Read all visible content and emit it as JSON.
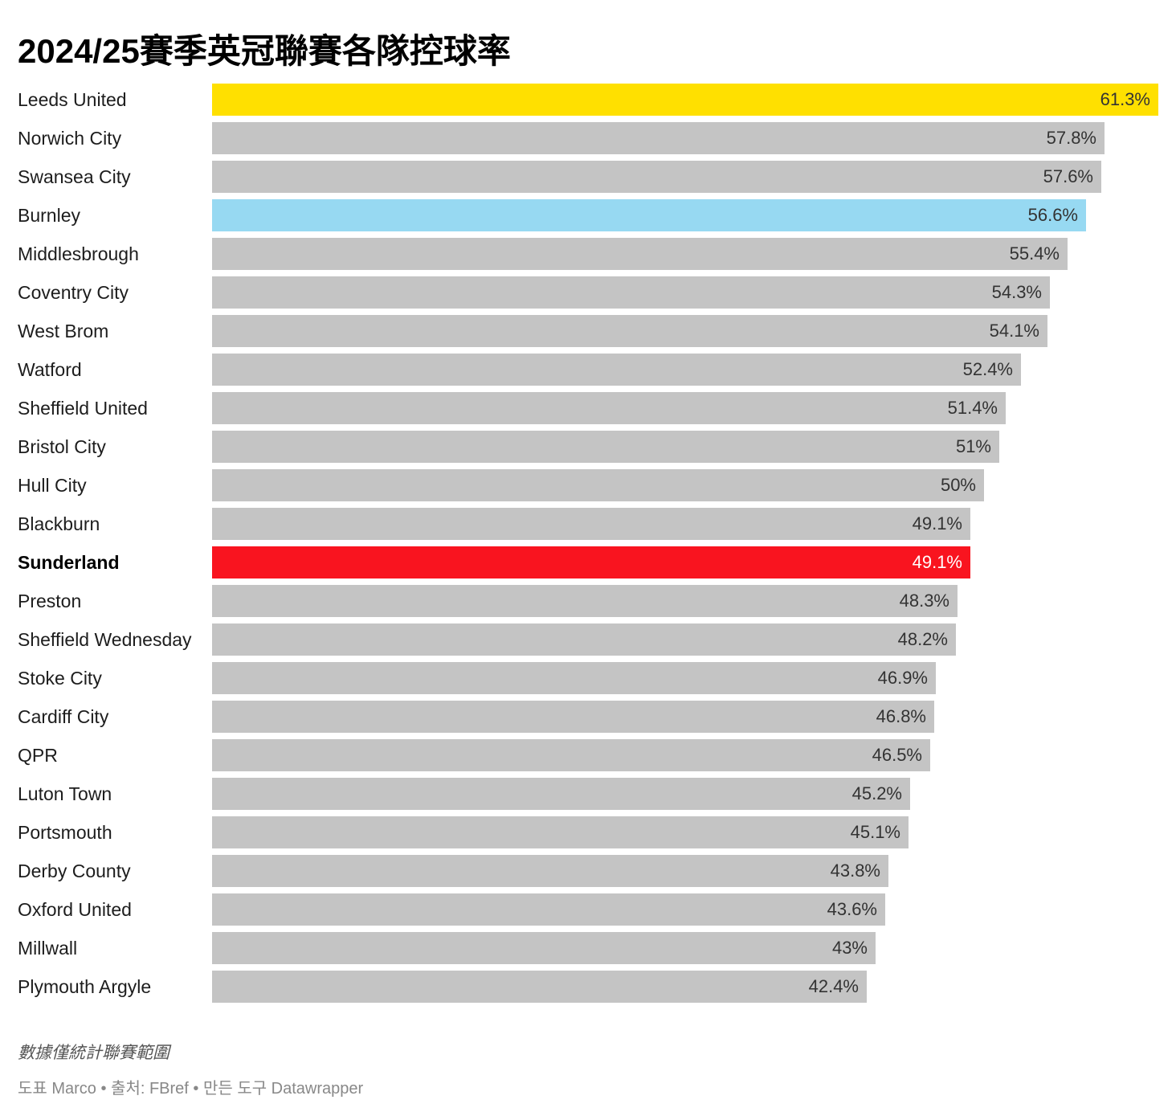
{
  "title": "2024/25賽季英冠聯賽各隊控球率",
  "note": "數據僅統計聯賽範圍",
  "credit": "도표 Marco • 출처: FBref • 만든 도구 Datawrapper",
  "colors": {
    "default_bar": "#c4c4c4",
    "leeds_bar": "#ffe000",
    "burnley_bar": "#97d9f2",
    "sunderland_bar": "#f9141f",
    "label_text": "#1d1d1d",
    "value_text": "#333333",
    "value_text_on_red": "#ffffff"
  },
  "chart_data": {
    "type": "bar",
    "orientation": "horizontal",
    "categories": [
      "Leeds United",
      "Norwich City",
      "Swansea City",
      "Burnley",
      "Middlesbrough",
      "Coventry City",
      "West Brom",
      "Watford",
      "Sheffield United",
      "Bristol City",
      "Hull City",
      "Blackburn",
      "Sunderland",
      "Preston",
      "Sheffield Wednesday",
      "Stoke City",
      "Cardiff City",
      "QPR",
      "Luton Town",
      "Portsmouth",
      "Derby County",
      "Oxford United",
      "Millwall",
      "Plymouth Argyle"
    ],
    "values": [
      61.3,
      57.8,
      57.6,
      56.6,
      55.4,
      54.3,
      54.1,
      52.4,
      51.4,
      51,
      50,
      49.1,
      49.1,
      48.3,
      48.2,
      46.9,
      46.8,
      46.5,
      45.2,
      45.1,
      43.8,
      43.6,
      43,
      42.4
    ],
    "value_labels": [
      "61.3%",
      "57.8%",
      "57.6%",
      "56.6%",
      "55.4%",
      "54.3%",
      "54.1%",
      "52.4%",
      "51.4%",
      "51%",
      "50%",
      "49.1%",
      "49.1%",
      "48.3%",
      "48.2%",
      "46.9%",
      "46.8%",
      "46.5%",
      "45.2%",
      "45.1%",
      "43.8%",
      "43.6%",
      "43%",
      "42.4%"
    ],
    "highlights": {
      "Leeds United": "leeds_bar",
      "Burnley": "burnley_bar",
      "Sunderland": "sunderland_bar"
    },
    "bold_labels": [
      "Sunderland"
    ],
    "xlim": [
      0,
      61.3
    ],
    "unit": "%",
    "grid": false,
    "legend": "none"
  }
}
